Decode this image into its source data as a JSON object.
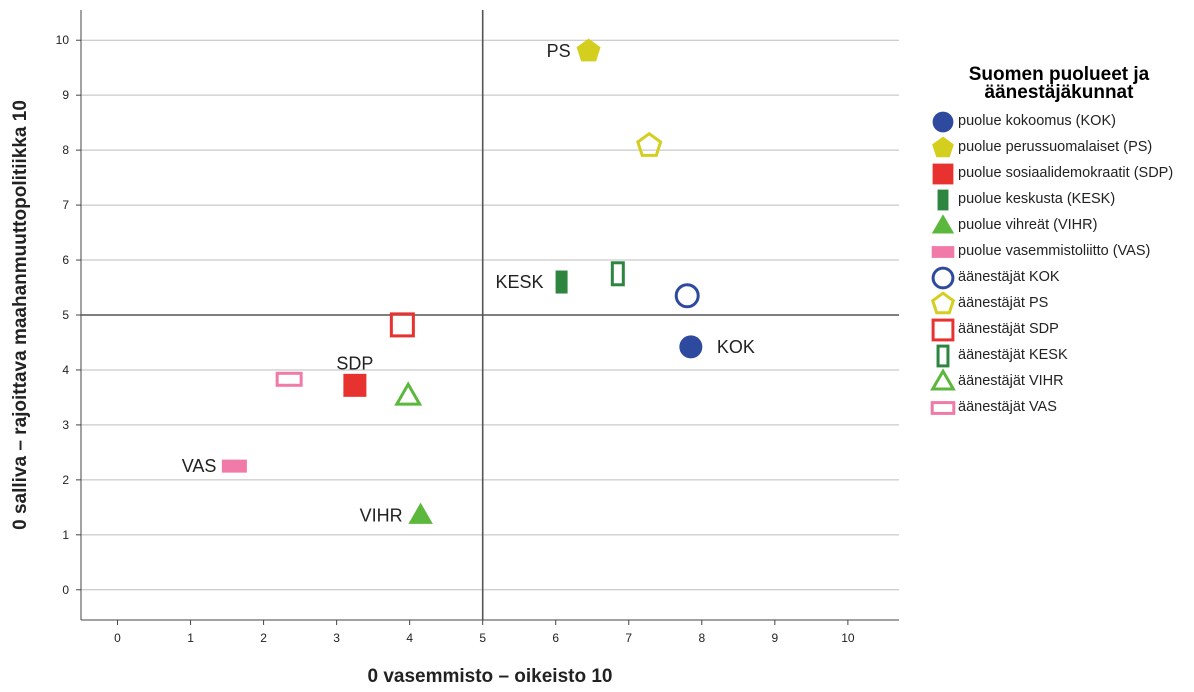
{
  "chart_data": {
    "type": "scatter",
    "title": "",
    "xlabel": "0 vasemmisto – oikeisto 10",
    "ylabel": "0 salliva – rajoittava maahanmuuttopolitiikka 10",
    "xlim": [
      -0.5,
      10.7
    ],
    "ylim": [
      -0.55,
      10.55
    ],
    "xticks": [
      0,
      1,
      2,
      3,
      4,
      5,
      6,
      7,
      8,
      9,
      10
    ],
    "yticks": [
      0,
      1,
      2,
      3,
      4,
      5,
      6,
      7,
      8,
      9,
      10
    ],
    "reference_lines": {
      "x": 5,
      "y": 5
    },
    "grid": "horizontal",
    "legend_position": "right",
    "legend_title": "Suomen puolueet ja äänestäjäkunnat",
    "series": [
      {
        "name": "puolue kokoomus (KOK)",
        "marker": "circle",
        "filled": true,
        "color": "#2e4a9e",
        "x": 7.85,
        "y": 4.42,
        "label": "KOK",
        "label_pos": "right"
      },
      {
        "name": "puolue perussuomalaiset (PS)",
        "marker": "pentagon",
        "filled": true,
        "color": "#d4cf1e",
        "x": 6.45,
        "y": 9.8,
        "label": "PS",
        "label_pos": "left"
      },
      {
        "name": "puolue sosiaalidemokraatit (SDP)",
        "marker": "square",
        "filled": true,
        "color": "#e8322f",
        "x": 3.25,
        "y": 3.72,
        "label": "SDP",
        "label_pos": "top"
      },
      {
        "name": "puolue keskusta (KESK)",
        "marker": "tall-rect",
        "filled": true,
        "color": "#2e8540",
        "x": 6.08,
        "y": 5.6,
        "label": "KESK",
        "label_pos": "left"
      },
      {
        "name": "puolue vihreät (VIHR)",
        "marker": "triangle",
        "filled": true,
        "color": "#5cb83c",
        "x": 4.15,
        "y": 1.35,
        "label": "VIHR",
        "label_pos": "left"
      },
      {
        "name": "puolue vasemmistoliitto (VAS)",
        "marker": "wide-rect",
        "filled": true,
        "color": "#f07aa8",
        "x": 1.6,
        "y": 2.25,
        "label": "VAS",
        "label_pos": "left"
      },
      {
        "name": "äänestäjät KOK",
        "marker": "circle",
        "filled": false,
        "color": "#2e4a9e",
        "x": 7.8,
        "y": 5.35
      },
      {
        "name": "äänestäjät PS",
        "marker": "pentagon",
        "filled": false,
        "color": "#d4cf1e",
        "x": 7.28,
        "y": 8.08
      },
      {
        "name": "äänestäjät SDP",
        "marker": "square",
        "filled": false,
        "color": "#e8322f",
        "x": 3.9,
        "y": 4.82
      },
      {
        "name": "äänestäjät KESK",
        "marker": "tall-rect",
        "filled": false,
        "color": "#2e8540",
        "x": 6.85,
        "y": 5.75
      },
      {
        "name": "äänestäjät VIHR",
        "marker": "triangle",
        "filled": false,
        "color": "#5cb83c",
        "x": 3.98,
        "y": 3.52
      },
      {
        "name": "äänestäjät VAS",
        "marker": "wide-rect",
        "filled": false,
        "color": "#f07aa8",
        "x": 2.35,
        "y": 3.83
      }
    ]
  }
}
